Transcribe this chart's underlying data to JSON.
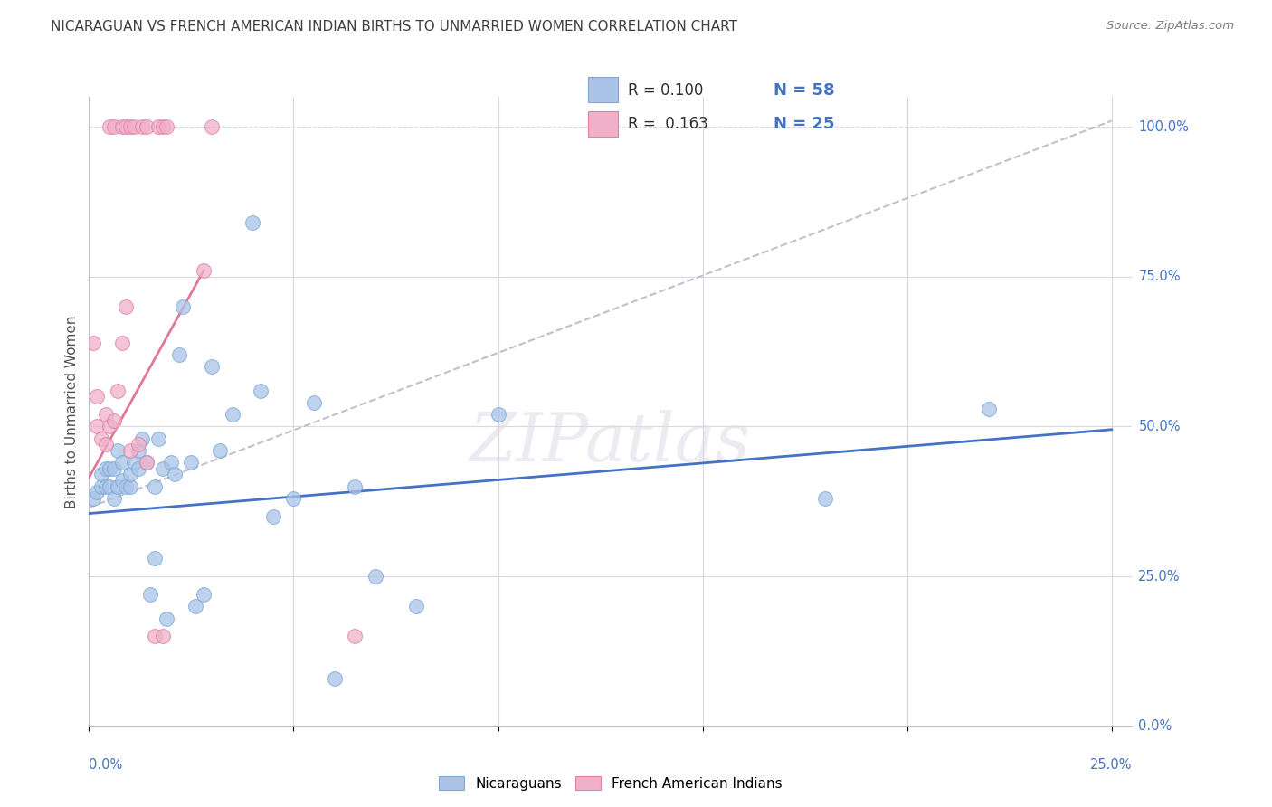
{
  "title": "NICARAGUAN VS FRENCH AMERICAN INDIAN BIRTHS TO UNMARRIED WOMEN CORRELATION CHART",
  "source": "Source: ZipAtlas.com",
  "ylabel": "Births to Unmarried Women",
  "watermark": "ZIPatlas",
  "blue_color": "#aac4e8",
  "blue_edge_color": "#7aaad4",
  "pink_color": "#f0b0c8",
  "pink_edge_color": "#e080a8",
  "blue_line_color": "#4472c4",
  "pink_line_color": "#e07898",
  "dashed_line_color": "#c0c0d0",
  "legend_label_blue": "Nicaraguans",
  "legend_label_pink": "French American Indians",
  "blue_scatter_x": [
    0.001,
    0.002,
    0.003,
    0.003,
    0.004,
    0.004,
    0.005,
    0.005,
    0.006,
    0.006,
    0.007,
    0.007,
    0.008,
    0.008,
    0.009,
    0.01,
    0.01,
    0.011,
    0.012,
    0.012,
    0.013,
    0.014,
    0.015,
    0.016,
    0.016,
    0.017,
    0.018,
    0.019,
    0.02,
    0.021,
    0.022,
    0.023,
    0.025,
    0.026,
    0.028,
    0.03,
    0.032,
    0.035,
    0.04,
    0.042,
    0.045,
    0.05,
    0.055,
    0.06,
    0.065,
    0.07,
    0.08,
    0.1,
    0.18,
    0.22
  ],
  "blue_scatter_y": [
    0.38,
    0.39,
    0.4,
    0.42,
    0.4,
    0.43,
    0.4,
    0.43,
    0.38,
    0.43,
    0.4,
    0.46,
    0.41,
    0.44,
    0.4,
    0.4,
    0.42,
    0.44,
    0.43,
    0.46,
    0.48,
    0.44,
    0.22,
    0.28,
    0.4,
    0.48,
    0.43,
    0.18,
    0.44,
    0.42,
    0.62,
    0.7,
    0.44,
    0.2,
    0.22,
    0.6,
    0.46,
    0.52,
    0.84,
    0.56,
    0.35,
    0.38,
    0.54,
    0.08,
    0.4,
    0.25,
    0.2,
    0.52,
    0.38,
    0.53
  ],
  "pink_scatter_x": [
    0.001,
    0.002,
    0.002,
    0.003,
    0.004,
    0.004,
    0.005,
    0.006,
    0.007,
    0.008,
    0.009,
    0.01,
    0.012,
    0.014,
    0.016,
    0.018,
    0.028,
    0.065
  ],
  "pink_scatter_y": [
    0.64,
    0.5,
    0.55,
    0.48,
    0.52,
    0.47,
    0.5,
    0.51,
    0.56,
    0.64,
    0.7,
    0.46,
    0.47,
    0.44,
    0.15,
    0.15,
    0.76,
    0.15
  ],
  "top_pink_x": [
    0.005,
    0.006,
    0.008,
    0.009,
    0.01,
    0.011,
    0.013,
    0.014,
    0.017,
    0.018,
    0.019,
    0.03
  ],
  "ylim": [
    0.0,
    1.05
  ],
  "xlim": [
    0.0,
    0.255
  ],
  "yticks": [
    0.0,
    0.25,
    0.5,
    0.75,
    1.0
  ],
  "ytick_labels": [
    "0.0%",
    "25.0%",
    "50.0%",
    "75.0%",
    "100.0%"
  ],
  "xtick_positions": [
    0.0,
    0.05,
    0.1,
    0.15,
    0.2,
    0.25
  ],
  "grid_color": "#d8d8e4",
  "background_color": "#ffffff",
  "title_color": "#404040",
  "axis_label_color": "#4472c4",
  "source_color": "#808080",
  "ylabel_color": "#505050",
  "blue_trend_x": [
    0.0,
    0.25
  ],
  "blue_trend_y": [
    0.355,
    0.495
  ],
  "pink_trend_x": [
    0.0,
    0.028
  ],
  "pink_trend_y": [
    0.415,
    0.76
  ],
  "dashed_trend_x": [
    0.0,
    0.25
  ],
  "dashed_trend_y": [
    0.365,
    1.01
  ],
  "scatter_size": 130,
  "scatter_alpha": 0.75,
  "fig_width": 14.06,
  "fig_height": 8.92,
  "dpi": 100
}
